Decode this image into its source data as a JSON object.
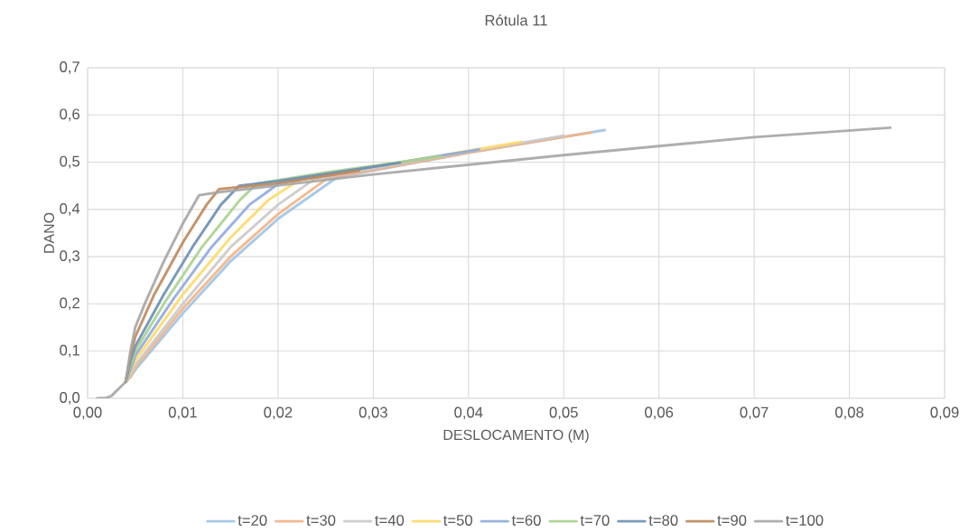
{
  "chart_data": {
    "type": "line",
    "title": "Rótula 11",
    "xlabel": "DESLOCAMENTO (M)",
    "ylabel": "DANO",
    "xlim": [
      0,
      0.09
    ],
    "ylim": [
      0,
      0.7
    ],
    "xticks": [
      {
        "value": 0,
        "label": "0,00"
      },
      {
        "value": 0.01,
        "label": "0,01"
      },
      {
        "value": 0.02,
        "label": "0,02"
      },
      {
        "value": 0.03,
        "label": "0,03"
      },
      {
        "value": 0.04,
        "label": "0,04"
      },
      {
        "value": 0.05,
        "label": "0,05"
      },
      {
        "value": 0.06,
        "label": "0,06"
      },
      {
        "value": 0.07,
        "label": "0,07"
      },
      {
        "value": 0.08,
        "label": "0,08"
      },
      {
        "value": 0.09,
        "label": "0,09"
      }
    ],
    "yticks": [
      {
        "value": 0,
        "label": "0,0"
      },
      {
        "value": 0.1,
        "label": "0,1"
      },
      {
        "value": 0.2,
        "label": "0,2"
      },
      {
        "value": 0.3,
        "label": "0,3"
      },
      {
        "value": 0.4,
        "label": "0,4"
      },
      {
        "value": 0.5,
        "label": "0,5"
      },
      {
        "value": 0.6,
        "label": "0,6"
      },
      {
        "value": 0.7,
        "label": "0,7"
      }
    ],
    "grid": true,
    "legend": "bottom",
    "line_style": "solid",
    "series": [
      {
        "name": "t=20",
        "color": "#9DC3E6",
        "x": [
          0.004,
          0.0045,
          0.005,
          0.01,
          0.015,
          0.02,
          0.0262,
          0.04,
          0.0543
        ],
        "values": [
          0.035,
          0.045,
          0.06,
          0.18,
          0.29,
          0.38,
          0.468,
          0.52,
          0.568
        ]
      },
      {
        "name": "t=30",
        "color": "#F4B183",
        "x": [
          0.004,
          0.0045,
          0.005,
          0.01,
          0.015,
          0.02,
          0.0252,
          0.04,
          0.0529
        ],
        "values": [
          0.035,
          0.045,
          0.065,
          0.19,
          0.3,
          0.39,
          0.466,
          0.52,
          0.563
        ]
      },
      {
        "name": "t=40",
        "color": "#C9C9C9",
        "x": [
          0.004,
          0.0045,
          0.005,
          0.01,
          0.015,
          0.02,
          0.0238,
          0.035,
          0.05
        ],
        "values": [
          0.035,
          0.05,
          0.07,
          0.2,
          0.32,
          0.41,
          0.464,
          0.505,
          0.556
        ]
      },
      {
        "name": "t=50",
        "color": "#FFD966",
        "x": [
          0.004,
          0.0045,
          0.005,
          0.01,
          0.015,
          0.019,
          0.0222,
          0.03,
          0.0455
        ],
        "values": [
          0.035,
          0.055,
          0.08,
          0.22,
          0.34,
          0.42,
          0.462,
          0.49,
          0.543
        ]
      },
      {
        "name": "t=60",
        "color": "#8FAADC",
        "x": [
          0.004,
          0.0045,
          0.005,
          0.009,
          0.013,
          0.017,
          0.0203,
          0.03,
          0.0411
        ],
        "values": [
          0.035,
          0.06,
          0.09,
          0.21,
          0.32,
          0.41,
          0.458,
          0.49,
          0.527
        ]
      },
      {
        "name": "t=70",
        "color": "#A9D18E",
        "x": [
          0.004,
          0.0045,
          0.005,
          0.008,
          0.012,
          0.016,
          0.0178,
          0.025,
          0.0371
        ],
        "values": [
          0.035,
          0.07,
          0.1,
          0.2,
          0.32,
          0.42,
          0.455,
          0.478,
          0.512
        ]
      },
      {
        "name": "t=80",
        "color": "#6A8FB5",
        "x": [
          0.004,
          0.0045,
          0.005,
          0.008,
          0.011,
          0.014,
          0.0159,
          0.02,
          0.0328
        ],
        "values": [
          0.035,
          0.08,
          0.11,
          0.22,
          0.32,
          0.41,
          0.45,
          0.46,
          0.499
        ]
      },
      {
        "name": "t=90",
        "color": "#C0875A",
        "x": [
          0.004,
          0.0045,
          0.005,
          0.007,
          0.01,
          0.0125,
          0.0138,
          0.02,
          0.0285
        ],
        "values": [
          0.035,
          0.09,
          0.13,
          0.22,
          0.33,
          0.41,
          0.443,
          0.455,
          0.482
        ]
      },
      {
        "name": "t=100",
        "color": "#A5A5A5",
        "x": [
          0.001,
          0.002,
          0.0025,
          0.003,
          0.004,
          0.0045,
          0.005,
          0.006,
          0.008,
          0.01,
          0.0117,
          0.014,
          0.03,
          0.05,
          0.07,
          0.0843
        ],
        "values": [
          0,
          0.001,
          0.005,
          0.015,
          0.035,
          0.1,
          0.15,
          0.2,
          0.29,
          0.37,
          0.43,
          0.437,
          0.474,
          0.515,
          0.553,
          0.573
        ]
      }
    ]
  }
}
